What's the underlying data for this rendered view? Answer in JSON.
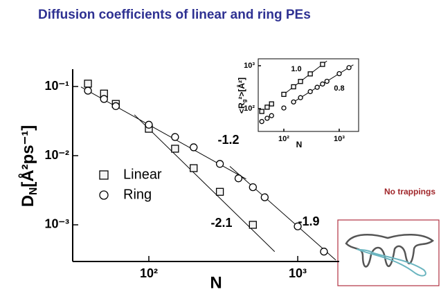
{
  "header": {
    "title": "Diffusion coefficients of linear and ring PEs"
  },
  "side": {
    "note": "No trappings"
  },
  "chart_data": [
    {
      "type": "scatter",
      "xscale": "log",
      "yscale": "log",
      "xlabel": "N",
      "ylabel": {
        "symbol": "D",
        "subscript": "N",
        "unit": "[Å²ps⁻¹]"
      },
      "xlim": [
        30.8,
        1900
      ],
      "ylim": [
        0.000295,
        0.178
      ],
      "xticks": [
        {
          "value": 100,
          "label": "10²"
        },
        {
          "value": 1000,
          "label": "10³"
        }
      ],
      "yticks": [
        {
          "value": 0.001,
          "label": "10⁻³"
        },
        {
          "value": 0.01,
          "label": "10⁻²"
        },
        {
          "value": 0.1,
          "label": "10⁻¹"
        }
      ],
      "legend": true,
      "series": [
        {
          "name": "Linear",
          "marker": "square",
          "color": "#000000",
          "x": [
            39,
            50,
            60,
            100,
            150,
            200,
            300,
            500
          ],
          "values": [
            0.11,
            0.079,
            0.056,
            0.0245,
            0.0126,
            0.0066,
            0.003,
            0.001
          ]
        },
        {
          "name": "Ring",
          "marker": "circle",
          "color": "#000000",
          "x": [
            39,
            50,
            60,
            100,
            150,
            200,
            300,
            400,
            500,
            600,
            1000,
            1500
          ],
          "values": [
            0.087,
            0.066,
            0.052,
            0.028,
            0.0186,
            0.0132,
            0.0076,
            0.0047,
            0.0035,
            0.0025,
            0.00095,
            0.00041
          ]
        }
      ],
      "fits": [
        {
          "label": "-1.2",
          "x": [
            35,
            450
          ],
          "values": [
            0.0985,
            0.0046
          ]
        },
        {
          "label": "-2.1",
          "x": [
            80,
            700
          ],
          "values": [
            0.039,
            0.00041
          ]
        },
        {
          "label": "-1.9",
          "x": [
            350,
            1800
          ],
          "values": [
            0.007,
            0.00031
          ]
        }
      ]
    },
    {
      "type": "scatter",
      "xscale": "log",
      "yscale": "log",
      "xlabel": "N",
      "ylabel": {
        "symbol": "<R",
        "subscript": "g",
        "unit": "²>[Å²]"
      },
      "xlim": [
        34.5,
        2240
      ],
      "ylim": [
        29.4,
        1450
      ],
      "xticks": [
        {
          "value": 100,
          "label": "10²"
        },
        {
          "value": 1000,
          "label": "10³"
        }
      ],
      "yticks": [
        {
          "value": 100,
          "label": "10²"
        },
        {
          "value": 1000,
          "label": "10³"
        }
      ],
      "legend": false,
      "series": [
        {
          "marker": "square",
          "color": "#000000",
          "x": [
            40,
            50,
            60,
            100,
            150,
            200,
            300,
            500
          ],
          "values": [
            86,
            108,
            129,
            215,
            323,
            430,
            645,
            1075
          ]
        },
        {
          "marker": "circle",
          "color": "#000000",
          "x": [
            40,
            50,
            60,
            100,
            150,
            200,
            300,
            400,
            500,
            600,
            1000,
            1500
          ],
          "values": [
            50,
            59.5,
            68.6,
            103.5,
            143,
            180,
            249,
            314,
            375,
            434,
            653,
            902
          ]
        }
      ],
      "fits": [
        {
          "label": "1.0",
          "x": [
            100,
            600
          ],
          "values": [
            215,
            1290
          ]
        },
        {
          "label": "0.8",
          "x": [
            150,
            1800
          ],
          "values": [
            143,
            1050
          ]
        }
      ]
    }
  ]
}
